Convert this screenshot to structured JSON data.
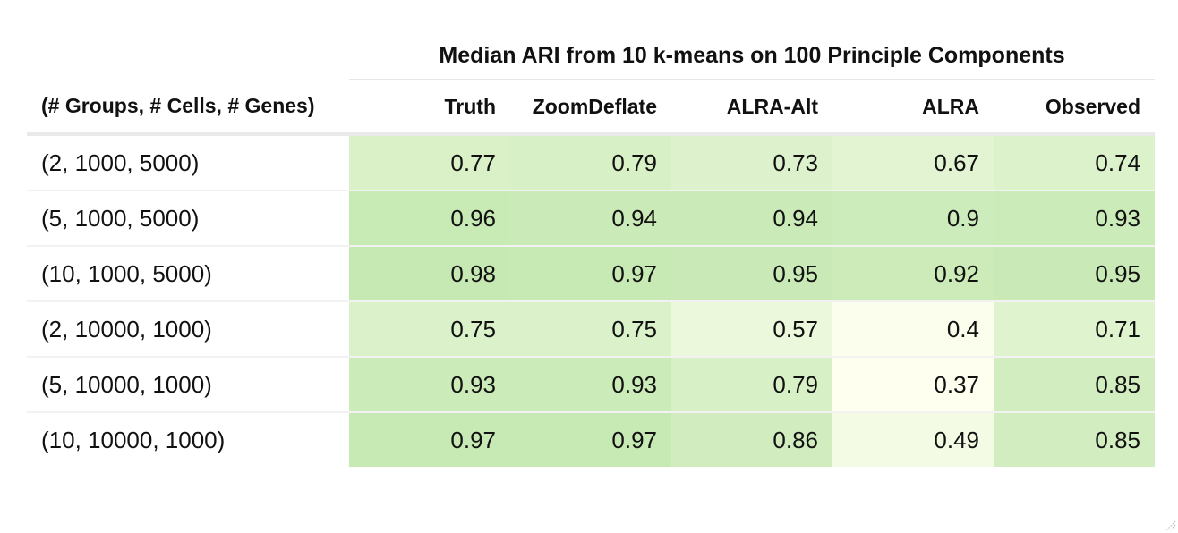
{
  "table": {
    "spanner_title": "Median ARI from 10 k-means on 100 Principle Components",
    "stub_header": "(# Groups, # Cells, # Genes)",
    "columns": [
      "Truth",
      "ZoomDeflate",
      "ALRA-Alt",
      "ALRA",
      "Observed"
    ],
    "rows": [
      {
        "label": "(2, 1000, 5000)",
        "values": [
          "0.77",
          "0.79",
          "0.73",
          "0.67",
          "0.74"
        ]
      },
      {
        "label": "(5, 1000, 5000)",
        "values": [
          "0.96",
          "0.94",
          "0.94",
          "0.9",
          "0.93"
        ]
      },
      {
        "label": "(10, 1000, 5000)",
        "values": [
          "0.98",
          "0.97",
          "0.95",
          "0.92",
          "0.95"
        ]
      },
      {
        "label": "(2, 10000, 1000)",
        "values": [
          "0.75",
          "0.75",
          "0.57",
          "0.4",
          "0.71"
        ]
      },
      {
        "label": "(5, 10000, 1000)",
        "values": [
          "0.93",
          "0.93",
          "0.79",
          "0.37",
          "0.85"
        ]
      },
      {
        "label": "(10, 10000, 1000)",
        "values": [
          "0.97",
          "0.97",
          "0.86",
          "0.49",
          "0.85"
        ]
      }
    ],
    "color_scale": {
      "low": "#fffff0",
      "high": "#c6e9b3",
      "min": 0.37,
      "max": 0.98
    }
  },
  "chart_data": {
    "type": "table",
    "title": "Median ARI from 10 k-means on 100 Principle Components",
    "row_header": "(# Groups, # Cells, # Genes)",
    "columns": [
      "Truth",
      "ZoomDeflate",
      "ALRA-Alt",
      "ALRA",
      "Observed"
    ],
    "rows": [
      "(2, 1000, 5000)",
      "(5, 1000, 5000)",
      "(10, 1000, 5000)",
      "(2, 10000, 1000)",
      "(5, 10000, 1000)",
      "(10, 10000, 1000)"
    ],
    "values": [
      [
        0.77,
        0.79,
        0.73,
        0.67,
        0.74
      ],
      [
        0.96,
        0.94,
        0.94,
        0.9,
        0.93
      ],
      [
        0.98,
        0.97,
        0.95,
        0.92,
        0.95
      ],
      [
        0.75,
        0.75,
        0.57,
        0.4,
        0.71
      ],
      [
        0.93,
        0.93,
        0.79,
        0.37,
        0.85
      ],
      [
        0.97,
        0.97,
        0.86,
        0.49,
        0.85
      ]
    ]
  }
}
